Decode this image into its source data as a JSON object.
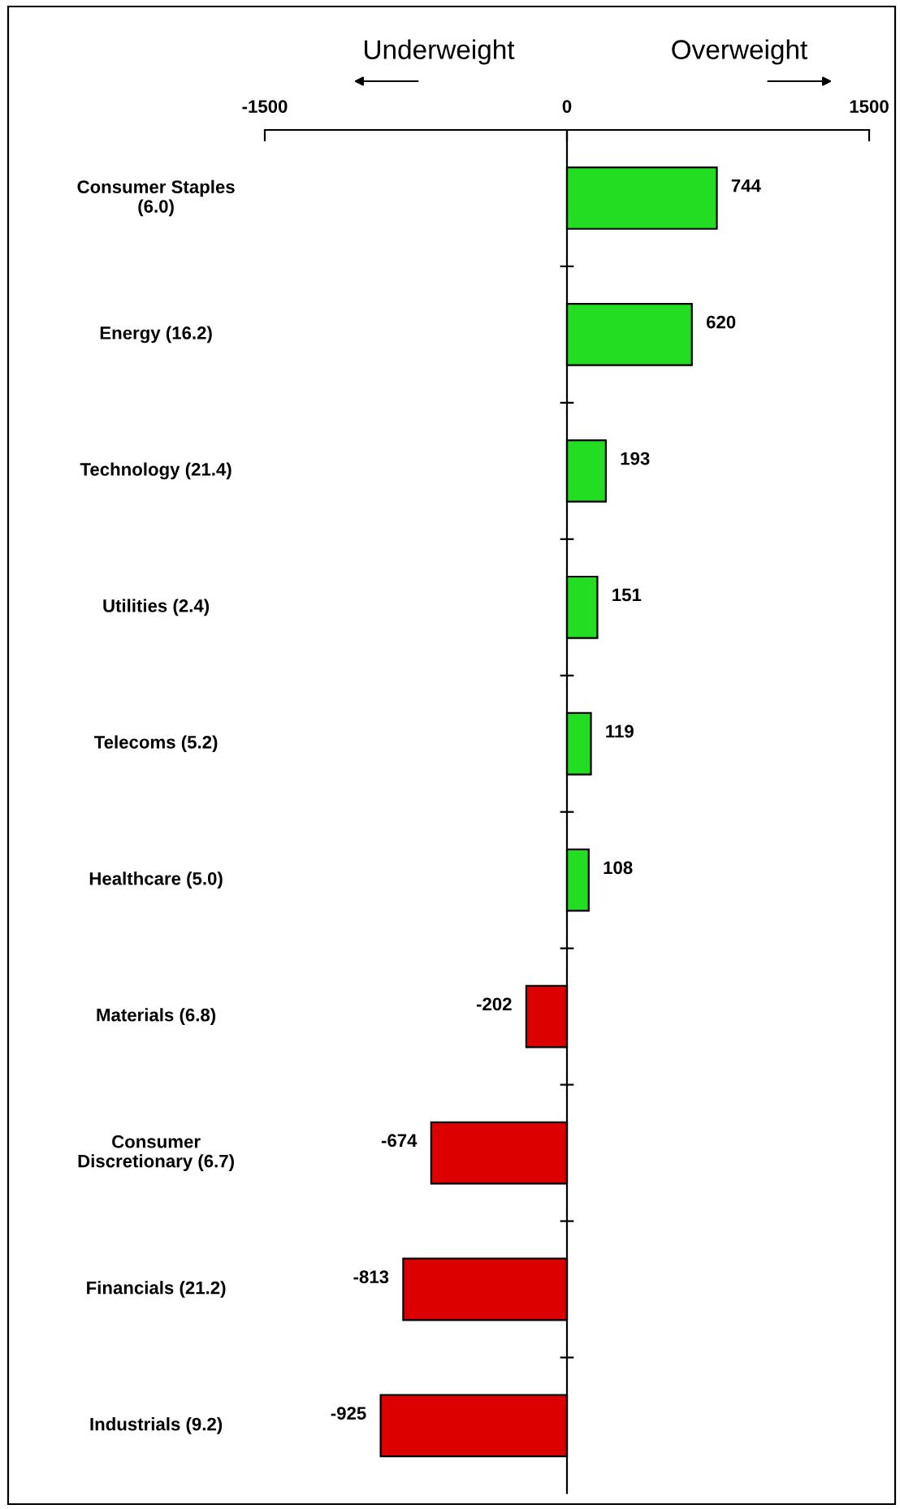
{
  "chart_data": {
    "type": "bar",
    "orientation": "horizontal",
    "categories": [
      "Consumer Staples\n(6.0)",
      "Energy (16.2)",
      "Technology (21.4)",
      "Utilities (2.4)",
      "Telecoms (5.2)",
      "Healthcare (5.0)",
      "Materials (6.8)",
      "Consumer\nDiscretionary (6.7)",
      "Financials (21.2)",
      "Industrials (9.2)"
    ],
    "values": [
      744,
      620,
      193,
      151,
      119,
      108,
      -202,
      -674,
      -813,
      -925
    ],
    "colors": [
      "#22dd22",
      "#22dd22",
      "#22dd22",
      "#22dd22",
      "#22dd22",
      "#22dd22",
      "#dd0000",
      "#dd0000",
      "#dd0000",
      "#dd0000"
    ],
    "xlim": [
      -1500,
      1500
    ],
    "xticks": [
      -1500,
      0,
      1500
    ],
    "ref_lines": [
      {
        "axis": "x",
        "value": 0,
        "color": "#000000",
        "line_style": "solid"
      }
    ],
    "data_labels": true,
    "grid": false,
    "legend": false,
    "annotations": [
      "Underweight",
      "Overweight"
    ]
  }
}
